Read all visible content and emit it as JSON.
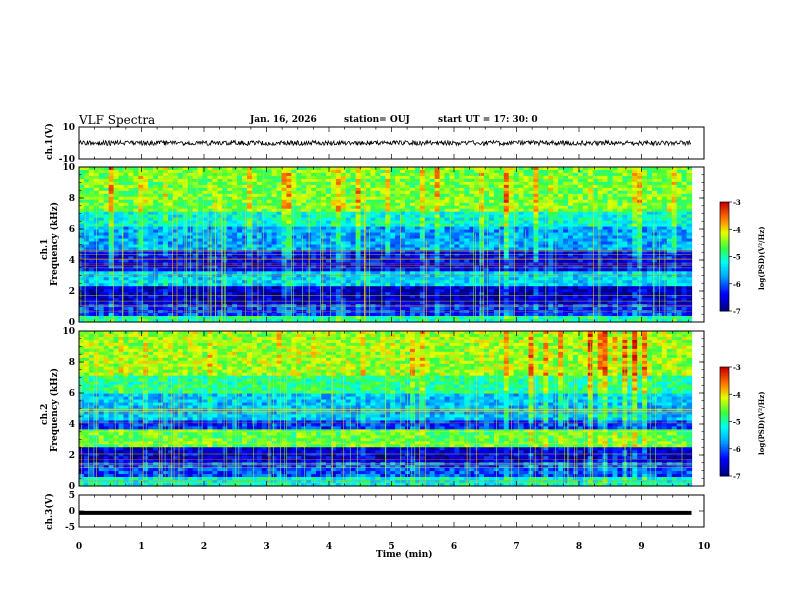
{
  "header": {
    "title": "VLF Spectra",
    "date": "Jan. 16, 2026",
    "station": "station= OUJ",
    "start": "start  UT =   17: 30: 0"
  },
  "chart_data": [
    {
      "type": "line",
      "name": "ch1-waveform",
      "ylabel": "ch.1(V)",
      "ylim": [
        -10,
        10
      ],
      "yticks": [
        "10",
        "-10"
      ],
      "xlim": [
        0,
        10
      ],
      "signal_level": 0,
      "noise_amplitude": 1.5
    },
    {
      "type": "heatmap",
      "name": "ch1-spectrogram",
      "ylabel_top": "ch.1",
      "ylabel": "Frequency (kHz)",
      "ylim": [
        0,
        10
      ],
      "yticks": [
        "0",
        "2",
        "4",
        "6",
        "8",
        "10"
      ],
      "xlim": [
        0,
        10
      ],
      "data_end_min": 9.8,
      "colorbar": {
        "label": "log(PSD)(V²/Hz)",
        "range": [
          -7,
          -3
        ],
        "ticks": [
          "-3",
          "-4",
          "-5",
          "-6",
          "-7"
        ]
      }
    },
    {
      "type": "heatmap",
      "name": "ch2-spectrogram",
      "ylabel_top": "ch.2",
      "ylabel": "Frequency (kHz)",
      "ylim": [
        0,
        10
      ],
      "yticks": [
        "0",
        "2",
        "4",
        "6",
        "8",
        "10"
      ],
      "xlim": [
        0,
        10
      ],
      "data_end_min": 9.8,
      "colorbar": {
        "label": "log(PSD)(V²/Hz)",
        "range": [
          -7,
          -3
        ],
        "ticks": [
          "-3",
          "-4",
          "-5",
          "-6",
          "-7"
        ]
      }
    },
    {
      "type": "line",
      "name": "ch3-waveform",
      "ylabel": "ch.3(V)",
      "ylim": [
        -5,
        5
      ],
      "yticks": [
        "5",
        "0",
        "-5"
      ],
      "xlim": [
        0,
        10
      ],
      "signal_level": -0.6
    }
  ],
  "xaxis": {
    "label": "Time (min)",
    "ticks": [
      "0",
      "1",
      "2",
      "3",
      "4",
      "5",
      "6",
      "7",
      "8",
      "9",
      "10"
    ]
  }
}
